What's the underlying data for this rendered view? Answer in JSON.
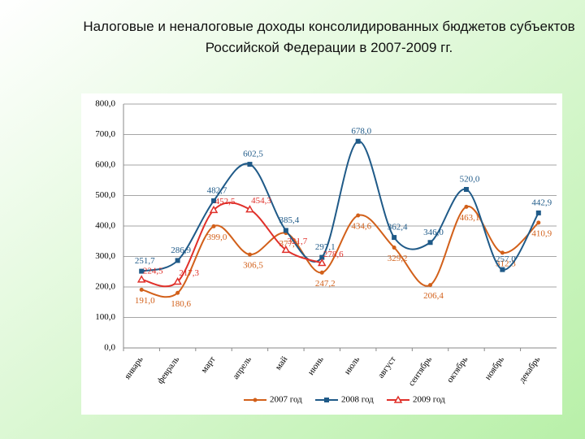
{
  "chart_data": {
    "type": "line",
    "title": "Налоговые и неналоговые доходы консолидированных бюджетов субъектов Российской Федерации в 2007-2009 гг.",
    "categories": [
      "январь",
      "февраль",
      "март",
      "апрель",
      "май",
      "июнь",
      "июль",
      "август",
      "сентябрь",
      "октябрь",
      "ноябрь",
      "декабрь"
    ],
    "series": [
      {
        "name": "2007 год",
        "color": "#d2601a",
        "marker": "circle",
        "values": [
          191.0,
          180.6,
          399.0,
          306.5,
          377.0,
          247.2,
          434.6,
          329.2,
          206.4,
          463.1,
          312.3,
          410.9
        ],
        "value_labels": [
          "191,0",
          "180,6",
          "399,0",
          "306,5",
          "377,0",
          "247,2",
          "434,6",
          "329,2",
          "206,4",
          "463,1",
          "312,3",
          "410,9"
        ]
      },
      {
        "name": "2008 год",
        "color": "#1f5a88",
        "marker": "square",
        "values": [
          251.7,
          286.9,
          482.7,
          602.5,
          385.4,
          297.1,
          678.0,
          362.4,
          346.0,
          520.0,
          257.0,
          442.9
        ],
        "value_labels": [
          "251,7",
          "286,9",
          "482,7",
          "602,5",
          "385,4",
          "297,1",
          "678,0",
          "362,4",
          "346,0",
          "520,0",
          "257,0",
          "442,9"
        ]
      },
      {
        "name": "2009 год",
        "color": "#e0302a",
        "marker": "triangle",
        "values": [
          224.5,
          217.3,
          452.5,
          454.3,
          321.7,
          278.6,
          null,
          null,
          null,
          null,
          null,
          null
        ],
        "value_labels": [
          "224,5",
          "217,3",
          "452,5",
          "454,3",
          "321,7",
          "278,6",
          null,
          null,
          null,
          null,
          null,
          null
        ]
      }
    ],
    "ylim": [
      0,
      800
    ],
    "yticks": [
      {
        "value": 0,
        "label": "0,0"
      },
      {
        "value": 100,
        "label": "100,0"
      },
      {
        "value": 200,
        "label": "200,0"
      },
      {
        "value": 300,
        "label": "300,0"
      },
      {
        "value": 400,
        "label": "400,0"
      },
      {
        "value": 500,
        "label": "500,0"
      },
      {
        "value": 600,
        "label": "600,0"
      },
      {
        "value": 700,
        "label": "700,0"
      },
      {
        "value": 800,
        "label": "800,0"
      }
    ],
    "grid": true,
    "legend": "bottom"
  }
}
